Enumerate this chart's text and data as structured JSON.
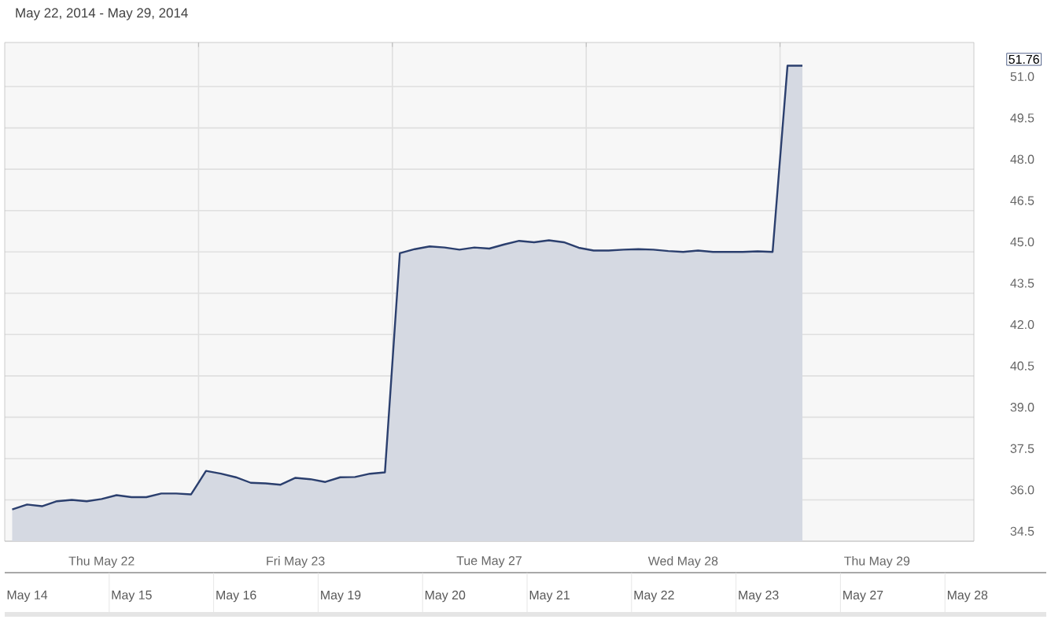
{
  "chart_data": [
    {
      "type": "area",
      "title": "May 22, 2014 - May 29, 2014",
      "color": "#2b3f6e",
      "grid": true,
      "categories": [
        null,
        null,
        null,
        null,
        null,
        null,
        "Thu May 22",
        null,
        null,
        null,
        null,
        null,
        null,
        null,
        null,
        null,
        null,
        null,
        null,
        "Fri May 23",
        null,
        null,
        null,
        null,
        null,
        null,
        null,
        null,
        null,
        null,
        null,
        null,
        "Tue May 27",
        null,
        null,
        null,
        null,
        null,
        null,
        null,
        null,
        null,
        null,
        null,
        null,
        "Wed May 28",
        null,
        null,
        null,
        null,
        null,
        null,
        null,
        null,
        null,
        null,
        null,
        null,
        "Thu May 29",
        null,
        null,
        null,
        null,
        null,
        null
      ],
      "values": [
        35.65,
        35.83,
        35.77,
        35.95,
        36.0,
        35.95,
        36.03,
        36.17,
        36.1,
        36.1,
        36.23,
        36.23,
        36.2,
        37.05,
        36.95,
        36.82,
        36.62,
        36.6,
        36.55,
        36.8,
        36.75,
        36.65,
        36.82,
        36.83,
        36.95,
        37.0,
        44.95,
        45.1,
        45.2,
        45.16,
        45.08,
        45.16,
        45.12,
        45.27,
        45.4,
        45.35,
        45.42,
        45.35,
        45.15,
        45.05,
        45.05,
        45.08,
        45.1,
        45.08,
        45.03,
        45.0,
        45.05,
        45.0,
        45.0,
        45.0,
        45.02,
        45.0,
        51.76,
        51.76,
        null,
        null,
        null,
        null,
        null,
        null,
        null,
        null,
        null,
        null,
        null
      ],
      "ylim": [
        34.5,
        52.6
      ],
      "yticks": [
        {
          "value": 34.5,
          "label": "34.5"
        },
        {
          "value": 36,
          "label": "36.0"
        },
        {
          "value": 37.5,
          "label": "37.5"
        },
        {
          "value": 39,
          "label": "39.0"
        },
        {
          "value": 40.5,
          "label": "40.5"
        },
        {
          "value": 42,
          "label": "42.0"
        },
        {
          "value": 43.5,
          "label": "43.5"
        },
        {
          "value": 45,
          "label": "45.0"
        },
        {
          "value": 46.5,
          "label": "46.5"
        },
        {
          "value": 48,
          "label": "48.0"
        },
        {
          "value": 49.5,
          "label": "49.5"
        },
        {
          "value": 51,
          "label": "51.0"
        }
      ],
      "annotations": [
        "51.76"
      ]
    },
    {
      "type": "other",
      "categories": [
        "May 14",
        "May 15",
        "May 16",
        "May 19",
        "May 20",
        "May 21",
        "May 22",
        "May 23",
        "May 27",
        "May 28"
      ]
    }
  ]
}
